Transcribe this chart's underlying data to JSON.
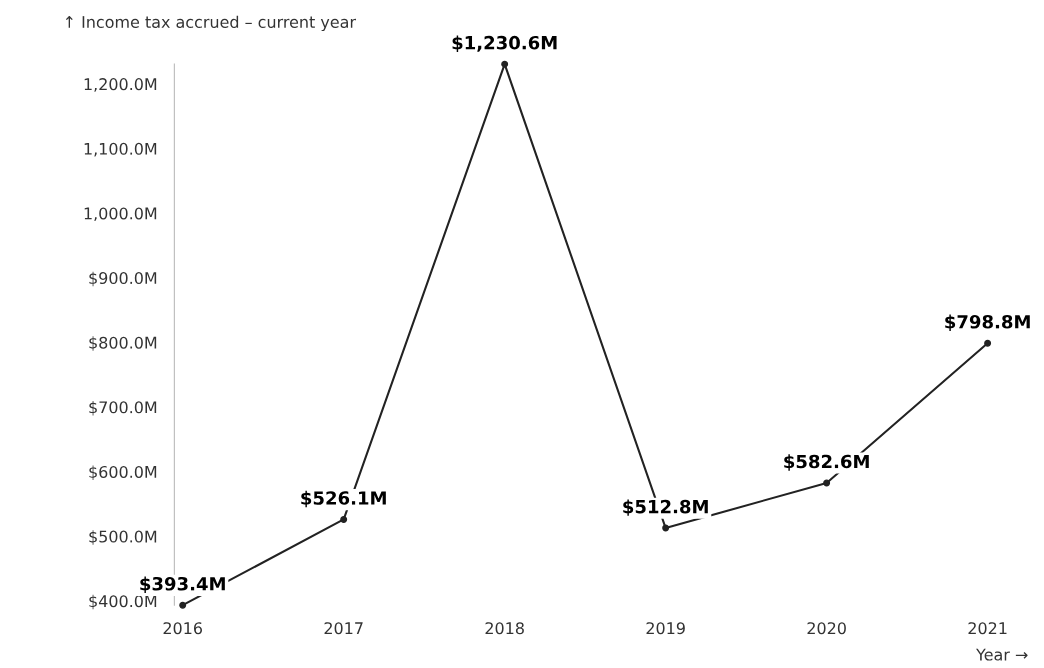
{
  "chart_data": {
    "type": "line",
    "ylabel": "↑ Income tax accrued – current year",
    "xlabel": "Year →",
    "x": [
      2016,
      2017,
      2018,
      2019,
      2020,
      2021
    ],
    "series": [
      {
        "color": "#222222",
        "values": [
          393.4,
          526.1,
          1230.6,
          512.8,
          582.6,
          798.8
        ],
        "value_labels": [
          "$393.4M",
          "$526.1M",
          "$1,230.6M",
          "$512.8M",
          "$582.6M",
          "$798.8M"
        ]
      }
    ],
    "xlim": [
      2016,
      2021
    ],
    "ylim": [
      393.4,
      1230.6
    ],
    "xticks": [
      2016,
      2017,
      2018,
      2019,
      2020,
      2021
    ],
    "yticks": [
      {
        "value": 400,
        "label": "$400.0M"
      },
      {
        "value": 500,
        "label": "$500.0M"
      },
      {
        "value": 600,
        "label": "$600.0M"
      },
      {
        "value": 700,
        "label": "$700.0M"
      },
      {
        "value": 800,
        "label": "$800.0M"
      },
      {
        "value": 900,
        "label": "$900.0M"
      },
      {
        "value": 1000,
        "label": "1,000.0M"
      },
      {
        "value": 1100,
        "label": "1,100.0M"
      },
      {
        "value": 1200,
        "label": "1,200.0M"
      }
    ],
    "grid": false,
    "legend": false,
    "marker": "circle",
    "line_style": "solid"
  }
}
